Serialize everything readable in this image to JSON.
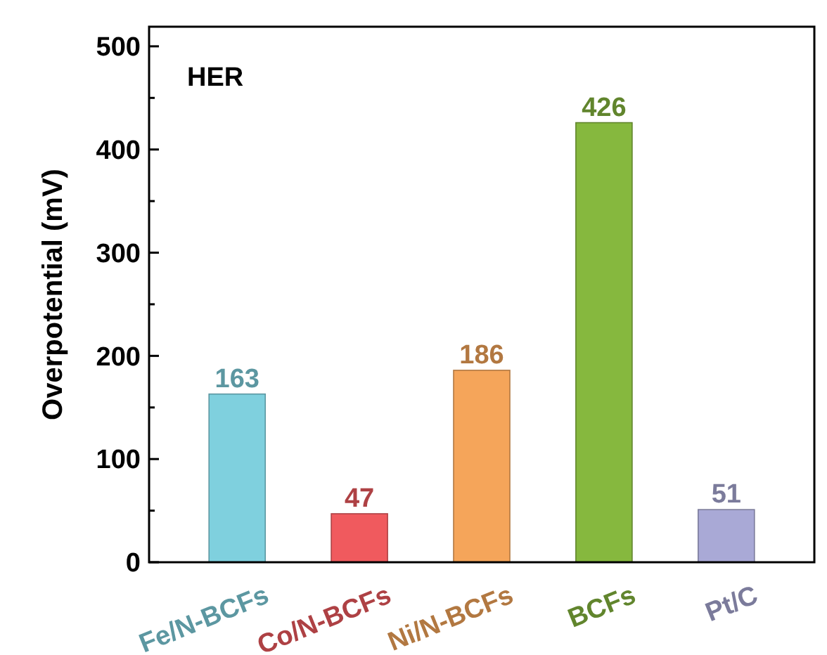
{
  "chart_data": {
    "type": "bar",
    "ylabel": "Overpotential (mV)",
    "annotations": [
      "HER"
    ],
    "categories": [
      "Fe/N-BCFs",
      "Co/N-BCFs",
      "Ni/N-BCFs",
      "BCFs",
      "Pt/C"
    ],
    "values": [
      163,
      47,
      186,
      426,
      51
    ],
    "colors": [
      "#7fd0de",
      "#f05a5e",
      "#f5a55a",
      "#86b83e",
      "#a9a9d6"
    ],
    "data_labels": true,
    "ylim": [
      0,
      519
    ],
    "yticks": [
      0,
      {
        "value": 50,
        "label": null
      },
      100,
      {
        "value": 150,
        "label": null
      },
      200,
      {
        "value": 250,
        "label": null
      },
      300,
      {
        "value": 350,
        "label": null
      },
      400,
      {
        "value": 450,
        "label": null
      },
      500
    ],
    "grid": false
  }
}
